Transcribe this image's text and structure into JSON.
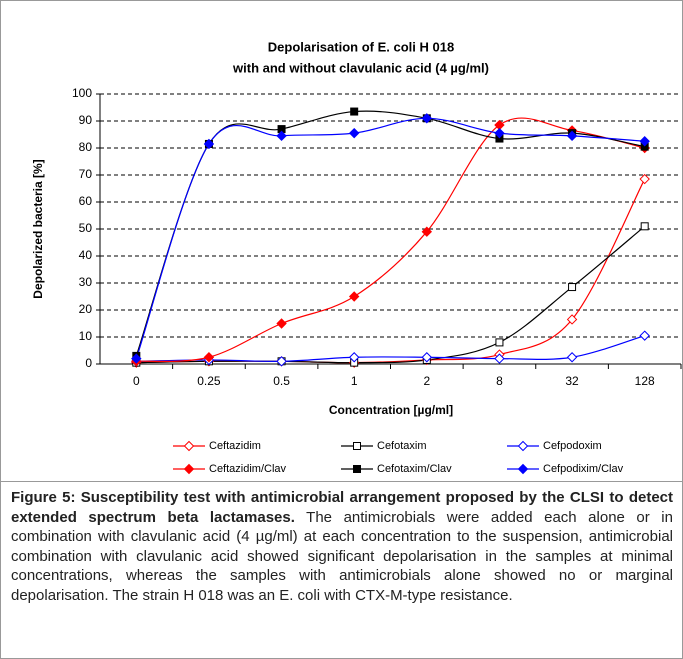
{
  "chart_data": {
    "type": "line",
    "title": [
      "Depolarisation of E. coli H 018",
      "with and without clavulanic acid (4 µg/ml)"
    ],
    "x_label": "Concentration [µg/ml]",
    "y_label": "Depolarized bacteria [%]",
    "categories": [
      "0",
      "0.25",
      "0.5",
      "1",
      "2",
      "8",
      "32",
      "128"
    ],
    "ylim": [
      0,
      100
    ],
    "yticks": [
      0,
      10,
      20,
      30,
      40,
      50,
      60,
      70,
      80,
      90,
      100
    ],
    "grid": true,
    "series": [
      {
        "name": "Ceftazidim",
        "color": "#ff0000",
        "marker": "diamond",
        "filled": false,
        "values": [
          0.5,
          1,
          1,
          0.5,
          1.5,
          3.5,
          16.5,
          68.5
        ]
      },
      {
        "name": "Cefotaxim",
        "color": "#000000",
        "marker": "square",
        "filled": false,
        "values": [
          0.5,
          1,
          1,
          0.5,
          1.5,
          8,
          28.5,
          51
        ]
      },
      {
        "name": "Cefpodoxim",
        "color": "#0000ff",
        "marker": "diamond",
        "filled": false,
        "values": [
          1,
          1.5,
          1,
          2.5,
          2.5,
          2,
          2.5,
          10.5
        ]
      },
      {
        "name": "Ceftazidim/Clav",
        "color": "#ff0000",
        "marker": "diamond",
        "filled": true,
        "values": [
          1,
          2.5,
          15,
          25,
          49,
          88.5,
          86.5,
          80
        ]
      },
      {
        "name": "Cefotaxim/Clav",
        "color": "#000000",
        "marker": "square",
        "filled": true,
        "values": [
          3,
          81.5,
          87,
          93.5,
          91,
          83.5,
          85.5,
          80.5
        ]
      },
      {
        "name": "Cefpodixim/Clav",
        "color": "#0000ff",
        "marker": "diamond",
        "filled": true,
        "values": [
          2,
          81.5,
          84.5,
          85.5,
          91,
          85.5,
          84.5,
          82.5
        ]
      }
    ]
  },
  "caption": {
    "label": "Figure 5: Susceptibility test with antimicrobial arrangement proposed by the CLSI to detect extended spectrum beta lactamases.",
    "text": " The antimicrobials were added each alone or in combination with clavulanic acid (4 µg/ml) at each concentration to the suspension, antimicrobial combination with clavulanic acid showed significant depolarisation in the samples at minimal concentrations, whereas the samples with antimicrobials alone showed no or marginal depolarisation. The strain H 018 was an E. coli with CTX-M-type resistance."
  }
}
